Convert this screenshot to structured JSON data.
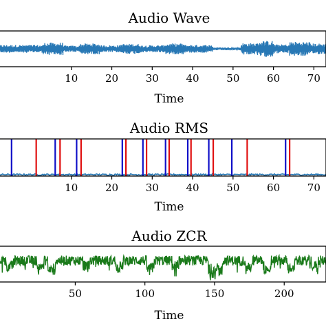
{
  "chart_data": [
    {
      "type": "line",
      "title": "Audio Wave",
      "xlabel": "Time",
      "ylabel": "",
      "xlim": [
        -8,
        73
      ],
      "ylim": [
        -1,
        1
      ],
      "xticks": [
        10,
        20,
        30,
        40,
        50,
        60,
        70
      ],
      "series": [
        {
          "color": "#2878b5",
          "segments": [
            {
              "x0": -8,
              "x1": 3,
              "amp": 0.22
            },
            {
              "x0": 3,
              "x1": 8,
              "amp": 0.35
            },
            {
              "x0": 8,
              "x1": 12,
              "amp": 0.18
            },
            {
              "x0": 12,
              "x1": 17,
              "amp": 0.3
            },
            {
              "x0": 17,
              "x1": 22,
              "amp": 0.2
            },
            {
              "x0": 22,
              "x1": 27,
              "amp": 0.28
            },
            {
              "x0": 27,
              "x1": 33,
              "amp": 0.2
            },
            {
              "x0": 33,
              "x1": 38,
              "amp": 0.3
            },
            {
              "x0": 38,
              "x1": 45,
              "amp": 0.22
            },
            {
              "x0": 45,
              "x1": 52,
              "amp": 0.08
            },
            {
              "x0": 52,
              "x1": 56,
              "amp": 0.32
            },
            {
              "x0": 56,
              "x1": 60,
              "amp": 0.45
            },
            {
              "x0": 60,
              "x1": 64,
              "amp": 0.25
            },
            {
              "x0": 64,
              "x1": 69,
              "amp": 0.4
            },
            {
              "x0": 69,
              "x1": 73,
              "amp": 0.3
            }
          ]
        }
      ],
      "grid": false
    },
    {
      "type": "line",
      "title": "Audio RMS",
      "xlabel": "Time",
      "ylabel": "",
      "xlim": [
        -8,
        73
      ],
      "ylim": [
        0,
        1
      ],
      "xticks": [
        10,
        20,
        30,
        40,
        50,
        60,
        70
      ],
      "rms_level": 0.05,
      "onset_lines_red": [
        1.3,
        7.2,
        12.4,
        23.5,
        28.6,
        34.2,
        39.6,
        45.1,
        53.5,
        64.0
      ],
      "offset_lines_blue": [
        -4.8,
        6.0,
        11.3,
        22.6,
        27.7,
        33.3,
        38.8,
        44.0,
        49.7,
        63.0
      ],
      "series": [
        {
          "color": "#2878b5"
        }
      ],
      "grid": false
    },
    {
      "type": "line",
      "title": "Audio ZCR",
      "xlabel": "Time",
      "ylabel": "",
      "xlim": [
        -5,
        230
      ],
      "ylim": [
        0,
        1
      ],
      "xticks": [
        50,
        100,
        150,
        200
      ],
      "series": [
        {
          "color": "#1a7a1a",
          "baseline": 0.6,
          "dips": [
            {
              "x": 3,
              "depth": 0.2
            },
            {
              "x": 25,
              "depth": 0.2
            },
            {
              "x": 33,
              "depth": 0.35
            },
            {
              "x": 58,
              "depth": 0.18
            },
            {
              "x": 82,
              "depth": 0.22
            },
            {
              "x": 104,
              "depth": 0.3
            },
            {
              "x": 122,
              "depth": 0.2
            },
            {
              "x": 148,
              "depth": 0.42
            },
            {
              "x": 153,
              "depth": 0.35
            },
            {
              "x": 175,
              "depth": 0.25
            },
            {
              "x": 188,
              "depth": 0.38
            },
            {
              "x": 205,
              "depth": 0.25
            },
            {
              "x": 222,
              "depth": 0.22
            }
          ]
        }
      ],
      "grid": false
    }
  ]
}
